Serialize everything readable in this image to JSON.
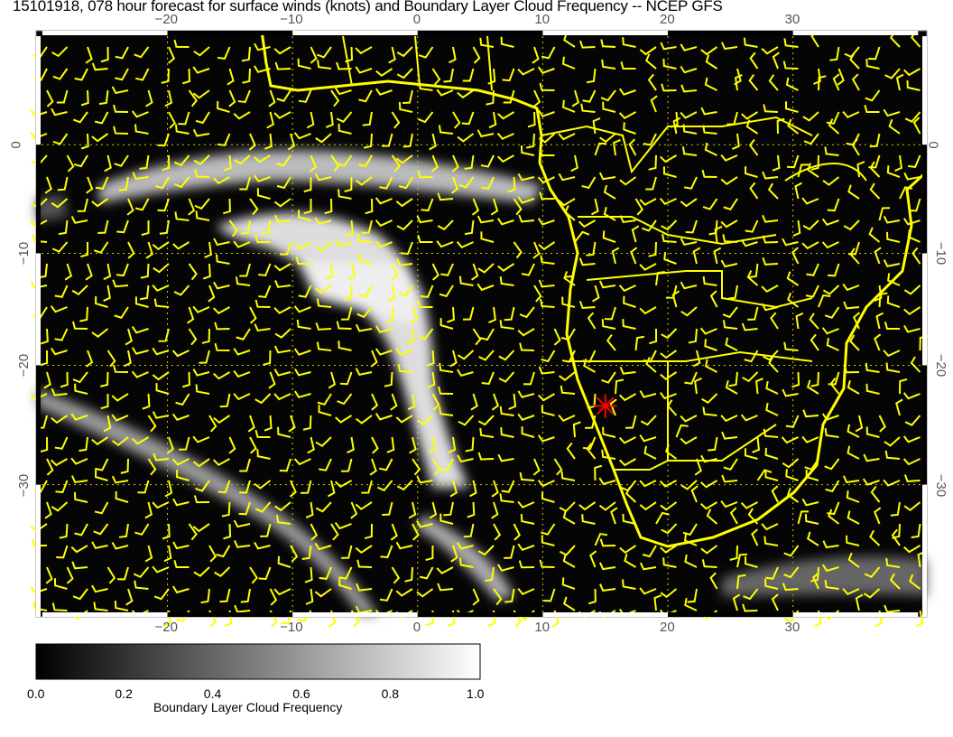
{
  "title": "15101918, 078 hour forecast for surface winds (knots) and Boundary Layer Cloud Frequency -- NCEP GFS",
  "map": {
    "lon_ticks": [
      "−20",
      "−10",
      "0",
      "10",
      "20",
      "30"
    ],
    "lon_values": [
      -20,
      -10,
      0,
      10,
      20,
      30
    ],
    "lat_ticks": [
      "0",
      "−10",
      "−20",
      "−30"
    ],
    "lat_values": [
      0,
      -10,
      -20,
      -30
    ],
    "lon_range": [
      -30.5,
      40.7
    ],
    "lat_range": [
      10.5,
      -40
    ],
    "background_color": "#000000",
    "wind_barb_color": "#ffff00",
    "coastline_color": "#ffff00",
    "gridline_color": "#ffff00",
    "marker": {
      "icon": "red-asterisk",
      "lon": 15,
      "lat": -23.5,
      "color": "#ff0000"
    }
  },
  "colorbar": {
    "label": "Boundary Layer Cloud Frequency",
    "ticks": [
      "0.0",
      "0.2",
      "0.4",
      "0.6",
      "0.8",
      "1.0"
    ],
    "range": [
      0.0,
      1.0
    ],
    "colormap": [
      "#000000",
      "#ffffff"
    ]
  }
}
